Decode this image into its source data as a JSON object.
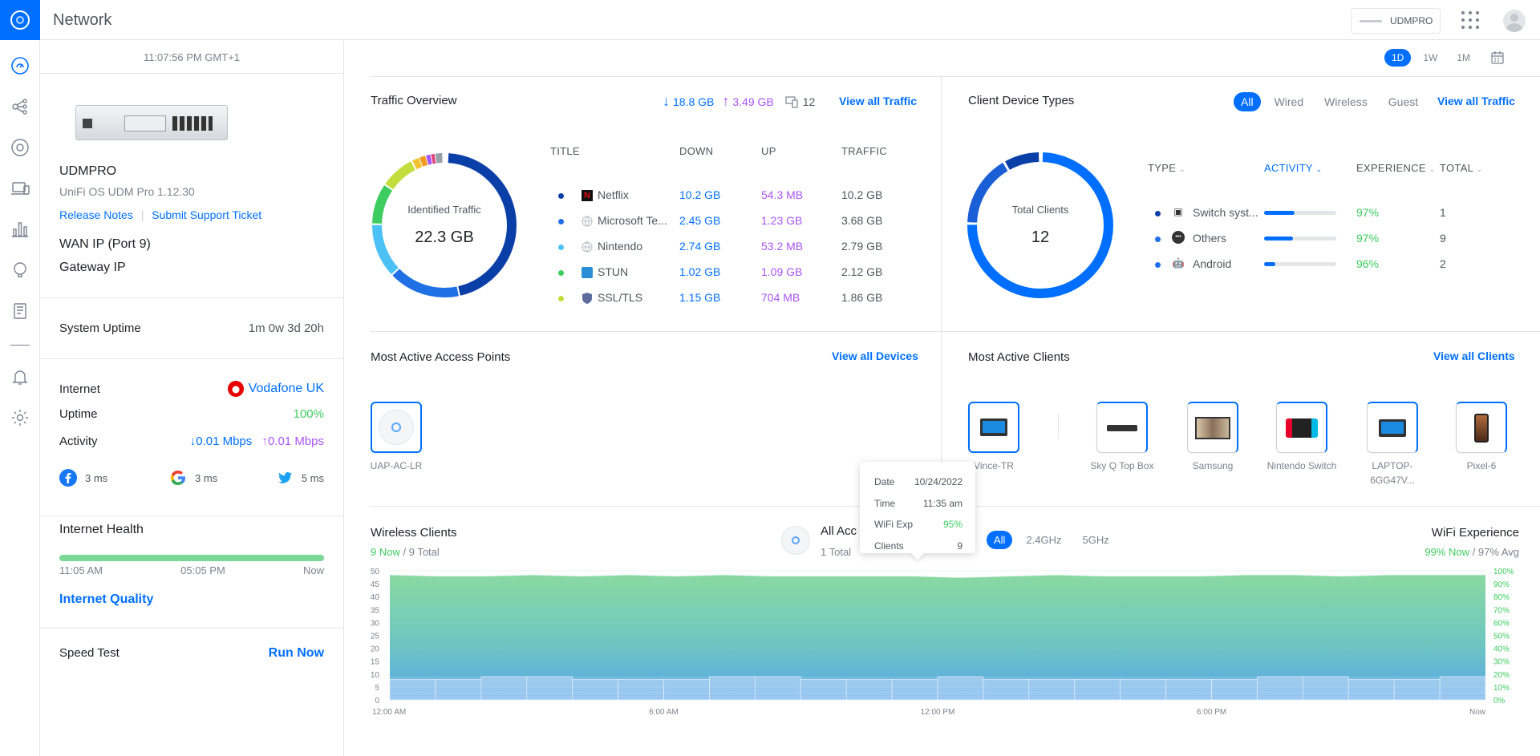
{
  "topbar": {
    "app_title": "Network",
    "device_name": "UDMPRO"
  },
  "nav": {
    "items": [
      "dashboard",
      "topology",
      "devices",
      "clients",
      "statistics",
      "insights",
      "logs",
      "alerts",
      "settings"
    ]
  },
  "left_panel": {
    "time": "11:07:56 PM GMT+1",
    "device": {
      "name": "UDMPRO",
      "version": "UniFi OS UDM Pro 1.12.30",
      "release_notes": "Release Notes",
      "support_ticket": "Submit Support Ticket"
    },
    "wan_ip_label": "WAN IP (Port 9)",
    "gateway_ip_label": "Gateway IP",
    "uptime_label": "System Uptime",
    "uptime_value": "1m 0w 3d 20h",
    "internet_label": "Internet",
    "isp": "Vodafone UK",
    "isp_uptime_label": "Uptime",
    "isp_uptime_value": "100%",
    "activity_label": "Activity",
    "activity_down": "0.01 Mbps",
    "activity_up": "0.01 Mbps",
    "latency": [
      {
        "icon": "facebook-icon",
        "value": "3 ms"
      },
      {
        "icon": "google-icon",
        "value": "3 ms"
      },
      {
        "icon": "twitter-icon",
        "value": "5 ms"
      }
    ],
    "health_label": "Internet Health",
    "health_fill": 1.0,
    "health_times": [
      "11:05 AM",
      "05:05 PM",
      "Now"
    ],
    "internet_quality": "Internet Quality",
    "speed_test_label": "Speed Test",
    "run_now": "Run Now"
  },
  "range": {
    "options": [
      "1D",
      "1W",
      "1M"
    ],
    "selected": "1D"
  },
  "traffic_overview": {
    "title": "Traffic Overview",
    "down": "18.8 GB",
    "up": "3.49 GB",
    "clients": "12",
    "view_all": "View all Traffic",
    "donut_label": "Identified Traffic",
    "donut_value": "22.3 GB",
    "headers": [
      "TITLE",
      "DOWN",
      "UP",
      "TRAFFIC"
    ],
    "rows": [
      {
        "color": "#0b3fa8",
        "icon": "netflix-icon",
        "title": "Netflix",
        "down": "10.2 GB",
        "up": "54.3 MB",
        "traffic": "10.2 GB"
      },
      {
        "color": "#1f6fe5",
        "icon": "globe-icon",
        "title": "Microsoft Te...",
        "down": "2.45 GB",
        "up": "1.23 GB",
        "traffic": "3.68 GB"
      },
      {
        "color": "#4cc1f5",
        "icon": "globe-icon",
        "title": "Nintendo",
        "down": "2.74 GB",
        "up": "53.2 MB",
        "traffic": "2.79 GB"
      },
      {
        "color": "#3dcc5f",
        "icon": "stun-icon",
        "title": "STUN",
        "down": "1.02 GB",
        "up": "1.09 GB",
        "traffic": "2.12 GB"
      },
      {
        "color": "#c3dd3c",
        "icon": "shield-icon",
        "title": "SSL/TLS",
        "down": "1.15 GB",
        "up": "704 MB",
        "traffic": "1.86 GB"
      }
    ]
  },
  "client_types": {
    "title": "Client Device Types",
    "filters": [
      "All",
      "Wired",
      "Wireless",
      "Guest"
    ],
    "selected": "All",
    "view_all": "View all Traffic",
    "donut_label": "Total Clients",
    "donut_value": "12",
    "headers": [
      "TYPE",
      "ACTIVITY",
      "EXPERIENCE",
      "TOTAL"
    ],
    "rows": [
      {
        "color": "#0b3fa8",
        "icon": "switch-icon",
        "type": "Switch syst...",
        "activity": 0.42,
        "experience": "97%",
        "total": "1"
      },
      {
        "color": "#1f6fe5",
        "icon": "others-icon",
        "type": "Others",
        "activity": 0.4,
        "experience": "97%",
        "total": "9"
      },
      {
        "color": "#1f6fe5",
        "icon": "android-icon",
        "type": "Android",
        "activity": 0.15,
        "experience": "96%",
        "total": "2"
      }
    ]
  },
  "access_points": {
    "title": "Most Active Access Points",
    "view_all": "View all Devices",
    "items": [
      {
        "label": "UAP-AC-LR"
      }
    ]
  },
  "active_clients": {
    "title": "Most Active Clients",
    "view_all": "View all Clients",
    "items": [
      {
        "label": "Vince-TR",
        "icon": "laptop-icon"
      },
      {
        "label": "Sky Q Top Box",
        "icon": "settop-box-icon"
      },
      {
        "label": "Samsung",
        "icon": "tv-icon"
      },
      {
        "label": "Nintendo Switch",
        "icon": "game-console-icon"
      },
      {
        "label": "LAPTOP-6GG47V...",
        "icon": "laptop-icon"
      },
      {
        "label": "Pixel-6",
        "icon": "phone-icon"
      }
    ]
  },
  "wireless": {
    "title": "Wireless Clients",
    "now": "9 Now",
    "total": "/ 9 Total",
    "ap_name": "All Acc",
    "ap_total": "1 Total",
    "bands": [
      "All",
      "2.4GHz",
      "5GHz"
    ],
    "band_selected": "All",
    "wifi_title": "WiFi Experience",
    "wifi_now": "99% Now",
    "wifi_avg": "/ 97% Avg"
  },
  "tooltip": {
    "date_label": "Date",
    "date": "10/24/2022",
    "time_label": "Time",
    "time": "11:35 am",
    "wifi_label": "WiFi Exp",
    "wifi": "95%",
    "clients_label": "Clients",
    "clients": "9"
  },
  "chart_data": {
    "type": "area",
    "x_labels": [
      "12:00 AM",
      "6:00 AM",
      "12:00 PM",
      "6:00 PM",
      "Now"
    ],
    "y_left_ticks": [
      "50",
      "45",
      "40",
      "35",
      "30",
      "25",
      "20",
      "15",
      "10",
      "5",
      "0"
    ],
    "y_right_ticks": [
      "100%",
      "90%",
      "80%",
      "70%",
      "60%",
      "50%",
      "40%",
      "30%",
      "20%",
      "10%",
      "0%"
    ],
    "ylim_left": [
      0,
      50
    ],
    "ylim_right": [
      0,
      100
    ],
    "series": [
      {
        "name": "WiFi Experience",
        "unit": "%",
        "values": [
          97,
          96,
          96,
          97,
          96,
          97,
          96,
          97,
          96,
          96,
          96,
          96,
          95,
          96,
          97,
          96,
          96,
          96,
          97,
          97,
          96,
          97,
          97,
          97
        ]
      },
      {
        "name": "Wireless Clients",
        "unit": "count",
        "values": [
          8,
          8,
          9,
          9,
          8,
          8,
          8,
          9,
          9,
          8,
          8,
          8,
          9,
          8,
          8,
          8,
          8,
          8,
          8,
          9,
          9,
          8,
          8,
          9
        ]
      }
    ]
  }
}
